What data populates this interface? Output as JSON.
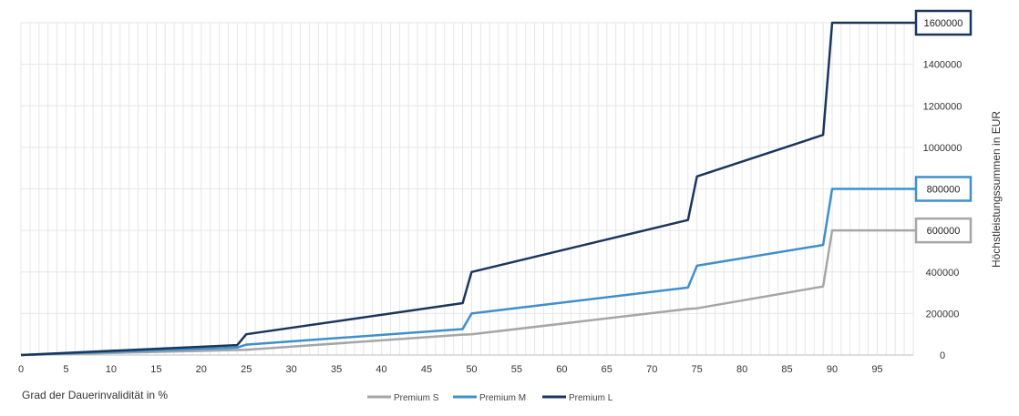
{
  "chart_data": {
    "type": "line",
    "title": "",
    "xlabel": "Grad der Dauerinvalidität in %",
    "ylabel": "Höchstleistungssummen in EUR",
    "xlim": [
      0,
      99
    ],
    "ylim": [
      0,
      1600000
    ],
    "x_ticks": [
      "0",
      "5",
      "10",
      "15",
      "20",
      "25",
      "30",
      "35",
      "40",
      "45",
      "50",
      "55",
      "60",
      "65",
      "70",
      "75",
      "80",
      "85",
      "90",
      "95"
    ],
    "y_ticks": [
      "0",
      "200000",
      "400000",
      "600000",
      "800000",
      "1000000",
      "1200000",
      "1400000",
      "1600000"
    ],
    "y_tick_values": [
      0,
      200000,
      400000,
      600000,
      800000,
      1000000,
      1200000,
      1400000,
      1600000
    ],
    "grid": true,
    "legend_position": "bottom",
    "series": [
      {
        "name": "Premium S",
        "color": "#a6a6a6",
        "end_label": "600000",
        "x": [
          0,
          24,
          25,
          49,
          50,
          74,
          75,
          89,
          90,
          99
        ],
        "y": [
          0,
          24000,
          25000,
          98000,
          100000,
          222000,
          225000,
          330000,
          600000,
          600000
        ]
      },
      {
        "name": "Premium M",
        "color": "#3f8fcc",
        "end_label": "800000",
        "x": [
          0,
          24,
          25,
          49,
          50,
          74,
          75,
          89,
          90,
          99
        ],
        "y": [
          0,
          36000,
          50000,
          125000,
          200000,
          325000,
          430000,
          530000,
          800000,
          800000
        ]
      },
      {
        "name": "Premium L",
        "color": "#1b365d",
        "end_label": "1600000",
        "x": [
          0,
          24,
          25,
          49,
          50,
          74,
          75,
          89,
          90,
          99
        ],
        "y": [
          0,
          48000,
          100000,
          250000,
          400000,
          650000,
          860000,
          1060000,
          1600000,
          1600000
        ]
      }
    ]
  }
}
